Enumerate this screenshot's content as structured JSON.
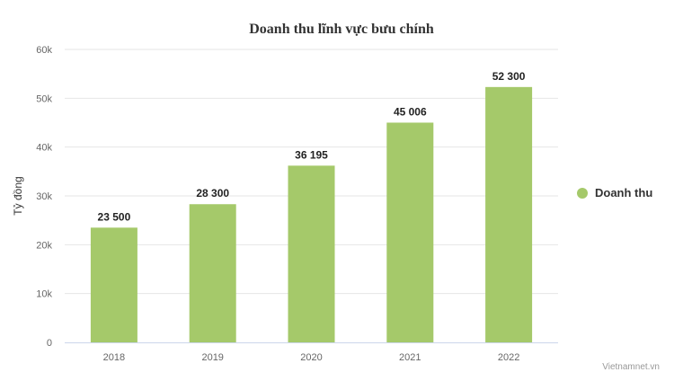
{
  "colors": {
    "bar": "#a5c96a",
    "grid": "#e6e6e6",
    "axis_line": "#ccd6eb",
    "tick_text": "#666666",
    "data_label": "#222222"
  },
  "credit": "Vietnamnet.vn",
  "chart_data": {
    "type": "bar",
    "title": "Doanh thu lĩnh vực bưu chính",
    "xlabel": "",
    "ylabel": "Tỷ đồng",
    "categories": [
      "2018",
      "2019",
      "2020",
      "2021",
      "2022"
    ],
    "series": [
      {
        "name": "Doanh thu",
        "values": [
          23500,
          28300,
          36195,
          45006,
          52300
        ],
        "labels": [
          "23 500",
          "28 300",
          "36 195",
          "45 006",
          "52 300"
        ]
      }
    ],
    "ylim": [
      0,
      60000
    ],
    "yticks": [
      0,
      10000,
      20000,
      30000,
      40000,
      50000,
      60000
    ],
    "ytick_labels": [
      "0",
      "10k",
      "20k",
      "30k",
      "40k",
      "50k",
      "60k"
    ],
    "grid": true,
    "legend_position": "right"
  }
}
